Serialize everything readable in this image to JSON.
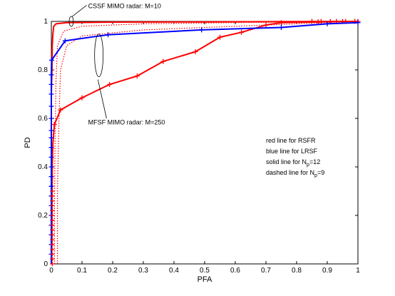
{
  "chart_data": {
    "type": "line",
    "title": "",
    "xlabel": "PFA",
    "ylabel": "PD",
    "xlim": [
      0,
      1
    ],
    "ylim": [
      0,
      1
    ],
    "x_ticks": [
      "0",
      "0.1",
      "0.2",
      "0.3",
      "0.4",
      "0.5",
      "0.6",
      "0.7",
      "0.8",
      "0.9",
      "1"
    ],
    "y_ticks": [
      "0",
      "0.2",
      "0.4",
      "0.6",
      "0.8",
      "1"
    ],
    "grid": false,
    "series": [
      {
        "color": "#ff0000",
        "style": "solid",
        "marker": "plus",
        "points": [
          [
            0,
            0
          ],
          [
            0,
            0.02
          ],
          [
            0,
            0.04
          ],
          [
            0,
            0.06
          ],
          [
            0.002,
            0.08
          ],
          [
            0.002,
            0.1
          ],
          [
            0.002,
            0.13
          ],
          [
            0.002,
            0.16
          ],
          [
            0.002,
            0.2
          ],
          [
            0.002,
            0.25
          ],
          [
            0.002,
            0.3
          ],
          [
            0.003,
            0.35
          ],
          [
            0.003,
            0.4
          ],
          [
            0.004,
            0.45
          ],
          [
            0.005,
            0.5
          ],
          [
            0.01,
            0.575
          ],
          [
            0.03,
            0.635
          ],
          [
            0.1,
            0.685
          ],
          [
            0.19,
            0.74
          ],
          [
            0.28,
            0.775
          ],
          [
            0.365,
            0.835
          ],
          [
            0.47,
            0.875
          ],
          [
            0.55,
            0.935
          ],
          [
            0.62,
            0.955
          ],
          [
            0.7,
            0.985
          ],
          [
            0.75,
            0.995
          ],
          [
            0.87,
            0.998
          ],
          [
            0.95,
            1.0
          ],
          [
            1.0,
            1.0
          ]
        ],
        "marked": [
          [
            0.01,
            0.575
          ],
          [
            0.03,
            0.635
          ],
          [
            0.1,
            0.685
          ],
          [
            0.19,
            0.74
          ],
          [
            0.28,
            0.775
          ],
          [
            0.365,
            0.835
          ],
          [
            0.47,
            0.875
          ],
          [
            0.55,
            0.935
          ],
          [
            0.62,
            0.955
          ],
          [
            0.7,
            0.985
          ],
          [
            0.75,
            0.995
          ],
          [
            0.87,
            0.998
          ],
          [
            0.95,
            1.0
          ],
          [
            1.0,
            1.0
          ]
        ]
      },
      {
        "color": "#ff0000",
        "style": "solid",
        "marker": "plus",
        "points": [
          [
            0,
            0
          ],
          [
            0,
            0.1
          ],
          [
            0,
            0.2
          ],
          [
            0,
            0.3
          ],
          [
            0,
            0.4
          ],
          [
            0,
            0.5
          ],
          [
            0,
            0.6
          ],
          [
            0,
            0.7
          ],
          [
            0.002,
            0.8
          ],
          [
            0.003,
            0.9
          ],
          [
            0.005,
            0.95
          ],
          [
            0.008,
            0.98
          ],
          [
            0.015,
            0.99
          ],
          [
            0.05,
            0.995
          ],
          [
            0.2,
            0.997
          ],
          [
            0.5,
            0.998
          ],
          [
            0.8,
            0.999
          ],
          [
            1.0,
            1.0
          ]
        ],
        "marked": [
          [
            0.85,
            1.0
          ],
          [
            0.88,
            1.0
          ],
          [
            0.91,
            1.0
          ],
          [
            0.93,
            1.0
          ],
          [
            0.96,
            1.0
          ],
          [
            0.99,
            1.0
          ]
        ]
      },
      {
        "color": "#ff0000",
        "style": "dotted",
        "marker": "none",
        "points": [
          [
            0.01,
            0.0
          ],
          [
            0.01,
            0.2
          ],
          [
            0.012,
            0.5
          ],
          [
            0.015,
            0.75
          ],
          [
            0.02,
            0.9
          ],
          [
            0.04,
            0.96
          ],
          [
            0.1,
            0.98
          ],
          [
            0.3,
            0.99
          ],
          [
            0.6,
            0.995
          ],
          [
            1.0,
            1.0
          ]
        ]
      },
      {
        "color": "#ff0000",
        "style": "dotted",
        "marker": "none",
        "points": [
          [
            0.02,
            0.0
          ],
          [
            0.02,
            0.3
          ],
          [
            0.025,
            0.6
          ],
          [
            0.03,
            0.8
          ],
          [
            0.05,
            0.9
          ],
          [
            0.1,
            0.94
          ],
          [
            0.3,
            0.965
          ],
          [
            0.5,
            0.975
          ],
          [
            0.7,
            0.985
          ],
          [
            1.0,
            1.0
          ]
        ]
      },
      {
        "color": "#0000ff",
        "style": "solid",
        "marker": "plus",
        "points": [
          [
            0,
            0.0
          ],
          [
            0,
            0.04
          ],
          [
            0,
            0.08
          ],
          [
            0,
            0.12
          ],
          [
            0,
            0.16
          ],
          [
            0,
            0.2
          ],
          [
            0,
            0.24
          ],
          [
            0,
            0.28
          ],
          [
            0,
            0.32
          ],
          [
            0,
            0.36
          ],
          [
            0,
            0.4
          ],
          [
            0,
            0.44
          ],
          [
            0,
            0.48
          ],
          [
            0,
            0.52
          ],
          [
            0,
            0.55
          ],
          [
            0,
            0.6
          ],
          [
            0,
            0.65
          ],
          [
            0,
            0.7
          ],
          [
            0,
            0.74
          ],
          [
            0,
            0.78
          ],
          [
            0.001,
            0.84
          ],
          [
            0.045,
            0.92
          ],
          [
            0.185,
            0.945
          ],
          [
            0.49,
            0.965
          ],
          [
            0.75,
            0.975
          ],
          [
            0.9,
            0.99
          ],
          [
            1.0,
            0.995
          ]
        ],
        "marked": [
          [
            0,
            0.04
          ],
          [
            0,
            0.08
          ],
          [
            0,
            0.12
          ],
          [
            0,
            0.16
          ],
          [
            0,
            0.2
          ],
          [
            0,
            0.24
          ],
          [
            0,
            0.28
          ],
          [
            0,
            0.32
          ],
          [
            0,
            0.36
          ],
          [
            0,
            0.4
          ],
          [
            0,
            0.44
          ],
          [
            0,
            0.48
          ],
          [
            0,
            0.52
          ],
          [
            0,
            0.55
          ],
          [
            0,
            0.6
          ],
          [
            0,
            0.65
          ],
          [
            0,
            0.7
          ],
          [
            0,
            0.74
          ],
          [
            0,
            0.78
          ],
          [
            0.001,
            0.84
          ],
          [
            0.045,
            0.92
          ],
          [
            0.185,
            0.945
          ],
          [
            0.49,
            0.965
          ],
          [
            0.75,
            0.975
          ],
          [
            0.9,
            0.99
          ],
          [
            1.0,
            0.995
          ]
        ]
      }
    ],
    "annotations": [
      {
        "text": "CSSF MIMO radar: M=10",
        "anchor": [
          0.115,
          1.05
        ]
      },
      {
        "text": "MFSF MIMO radar: M=250",
        "anchor": [
          0.115,
          0.57
        ]
      }
    ],
    "legend_box": {
      "lines": [
        {
          "text": "red line for RSFR",
          "sub": "",
          "post": ""
        },
        {
          "text": "blue line for LRSF",
          "sub": "",
          "post": ""
        },
        {
          "text": "solid line for N",
          "sub": "p",
          "post": "=12"
        },
        {
          "text": "dashed line for N",
          "sub": "p",
          "post": "=9"
        }
      ]
    }
  }
}
